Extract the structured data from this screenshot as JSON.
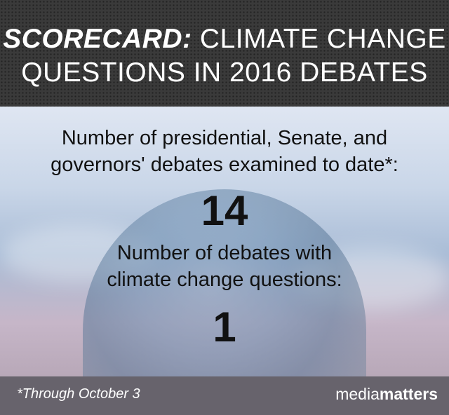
{
  "header": {
    "title_bold": "SCORECARD:",
    "title_rest_line1": "CLIMATE CHANGE",
    "title_line2": "QUESTIONS IN 2016 DEBATES"
  },
  "main": {
    "question1": "Number of presidential, Senate, and governors' debates examined to date*:",
    "value1": "14",
    "question2_line1": "Number of debates with",
    "question2_line2": "climate change questions:",
    "value2": "1"
  },
  "footer": {
    "note": "*Through October 3",
    "logo_light": "media",
    "logo_bold": "matters"
  }
}
